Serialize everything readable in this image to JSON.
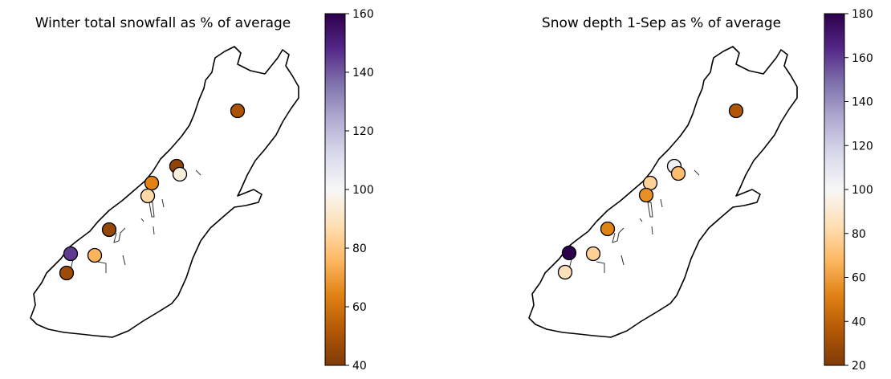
{
  "chart_data": [
    {
      "type": "scatter",
      "title": "Winter total snowfall as % of average",
      "colorbar": {
        "min": 40,
        "max": 160,
        "ticks": [
          "40",
          "60",
          "80",
          "100",
          "120",
          "140",
          "160"
        ],
        "colormap": "PuOr"
      },
      "values": [
        50,
        44,
        95,
        64,
        86,
        45,
        75,
        145,
        47
      ]
    },
    {
      "type": "scatter",
      "title": "Snow depth 1-Sep as % of average",
      "colorbar": {
        "min": 20,
        "max": 180,
        "ticks": [
          "20",
          "40",
          "60",
          "80",
          "100",
          "120",
          "140",
          "160",
          "180"
        ],
        "colormap": "PuOr"
      },
      "values": [
        35,
        104,
        70,
        78,
        56,
        52,
        78,
        180,
        85
      ]
    }
  ],
  "colors": {
    "colormap_stops": [
      "#7f3b08",
      "#b35806",
      "#e08214",
      "#fdb863",
      "#fee0b6",
      "#f7f7f7",
      "#d8daeb",
      "#b2abd2",
      "#8073ac",
      "#542788",
      "#2d004b"
    ]
  }
}
